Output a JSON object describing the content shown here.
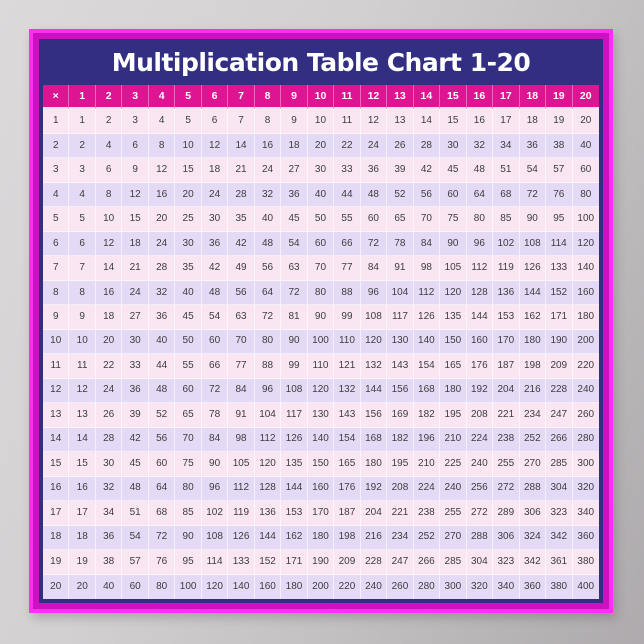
{
  "poster": {
    "title": "Multiplication Table Chart 1-20"
  },
  "colors": {
    "wall_light": "#dbd9da",
    "wall_dark": "#aeaaad",
    "frame_outer_magenta": "#fe2ef6",
    "frame_inner_magenta": "#cd10c0",
    "panel_navy": "#322e81",
    "header_magenta": "#de1593",
    "header_text": "#ffffff",
    "row_pink": "#f9e6f2",
    "row_lavender": "#e5daf6",
    "cell_text": "#3d3d3d",
    "grid_line": "#f7ecf5",
    "title_text": "#ffffff"
  },
  "chart_data": {
    "type": "table",
    "title": "Multiplication Table Chart 1-20",
    "corner_label": "×",
    "columns": [
      "1",
      "2",
      "3",
      "4",
      "5",
      "6",
      "7",
      "8",
      "9",
      "10",
      "11",
      "12",
      "13",
      "14",
      "15",
      "16",
      "17",
      "18",
      "19",
      "20"
    ],
    "row_labels": [
      "1",
      "2",
      "3",
      "4",
      "5",
      "6",
      "7",
      "8",
      "9",
      "10",
      "11",
      "12",
      "13",
      "14",
      "15",
      "16",
      "17",
      "18",
      "19",
      "20"
    ],
    "rows": [
      [
        1,
        2,
        3,
        4,
        5,
        6,
        7,
        8,
        9,
        10,
        11,
        12,
        13,
        14,
        15,
        16,
        17,
        18,
        19,
        20
      ],
      [
        2,
        4,
        6,
        8,
        10,
        12,
        14,
        16,
        18,
        20,
        22,
        24,
        26,
        28,
        30,
        32,
        34,
        36,
        38,
        40
      ],
      [
        3,
        6,
        9,
        12,
        15,
        18,
        21,
        24,
        27,
        30,
        33,
        36,
        39,
        42,
        45,
        48,
        51,
        54,
        57,
        60
      ],
      [
        4,
        8,
        12,
        16,
        20,
        24,
        28,
        32,
        36,
        40,
        44,
        48,
        52,
        56,
        60,
        64,
        68,
        72,
        76,
        80
      ],
      [
        5,
        10,
        15,
        20,
        25,
        30,
        35,
        40,
        45,
        50,
        55,
        60,
        65,
        70,
        75,
        80,
        85,
        90,
        95,
        100
      ],
      [
        6,
        12,
        18,
        24,
        30,
        36,
        42,
        48,
        54,
        60,
        66,
        72,
        78,
        84,
        90,
        96,
        102,
        108,
        114,
        120
      ],
      [
        7,
        14,
        21,
        28,
        35,
        42,
        49,
        56,
        63,
        70,
        77,
        84,
        91,
        98,
        105,
        112,
        119,
        126,
        133,
        140
      ],
      [
        8,
        16,
        24,
        32,
        40,
        48,
        56,
        64,
        72,
        80,
        88,
        96,
        104,
        112,
        120,
        128,
        136,
        144,
        152,
        160
      ],
      [
        9,
        18,
        27,
        36,
        45,
        54,
        63,
        72,
        81,
        90,
        99,
        108,
        117,
        126,
        135,
        144,
        153,
        162,
        171,
        180
      ],
      [
        10,
        20,
        30,
        40,
        50,
        60,
        70,
        80,
        90,
        100,
        110,
        120,
        130,
        140,
        150,
        160,
        170,
        180,
        190,
        200
      ],
      [
        11,
        22,
        33,
        44,
        55,
        66,
        77,
        88,
        99,
        110,
        121,
        132,
        143,
        154,
        165,
        176,
        187,
        198,
        209,
        220
      ],
      [
        12,
        24,
        36,
        48,
        60,
        72,
        84,
        96,
        108,
        120,
        132,
        144,
        156,
        168,
        180,
        192,
        204,
        216,
        228,
        240
      ],
      [
        13,
        26,
        39,
        52,
        65,
        78,
        91,
        104,
        117,
        130,
        143,
        156,
        169,
        182,
        195,
        208,
        221,
        234,
        247,
        260
      ],
      [
        14,
        28,
        42,
        56,
        70,
        84,
        98,
        112,
        126,
        140,
        154,
        168,
        182,
        196,
        210,
        224,
        238,
        252,
        266,
        280
      ],
      [
        15,
        30,
        45,
        60,
        75,
        90,
        105,
        120,
        135,
        150,
        165,
        180,
        195,
        210,
        225,
        240,
        255,
        270,
        285,
        300
      ],
      [
        16,
        32,
        48,
        64,
        80,
        96,
        112,
        128,
        144,
        160,
        176,
        192,
        208,
        224,
        240,
        256,
        272,
        288,
        304,
        320
      ],
      [
        17,
        34,
        51,
        68,
        85,
        102,
        119,
        136,
        153,
        170,
        187,
        204,
        221,
        238,
        255,
        272,
        289,
        306,
        323,
        340
      ],
      [
        18,
        36,
        54,
        72,
        90,
        108,
        126,
        144,
        162,
        180,
        198,
        216,
        234,
        252,
        270,
        288,
        306,
        324,
        342,
        360
      ],
      [
        19,
        38,
        57,
        76,
        95,
        114,
        133,
        152,
        171,
        190,
        209,
        228,
        247,
        266,
        285,
        304,
        323,
        342,
        361,
        380
      ],
      [
        20,
        40,
        60,
        80,
        100,
        120,
        140,
        160,
        180,
        200,
        220,
        240,
        260,
        280,
        300,
        320,
        340,
        360,
        380,
        400
      ]
    ]
  }
}
